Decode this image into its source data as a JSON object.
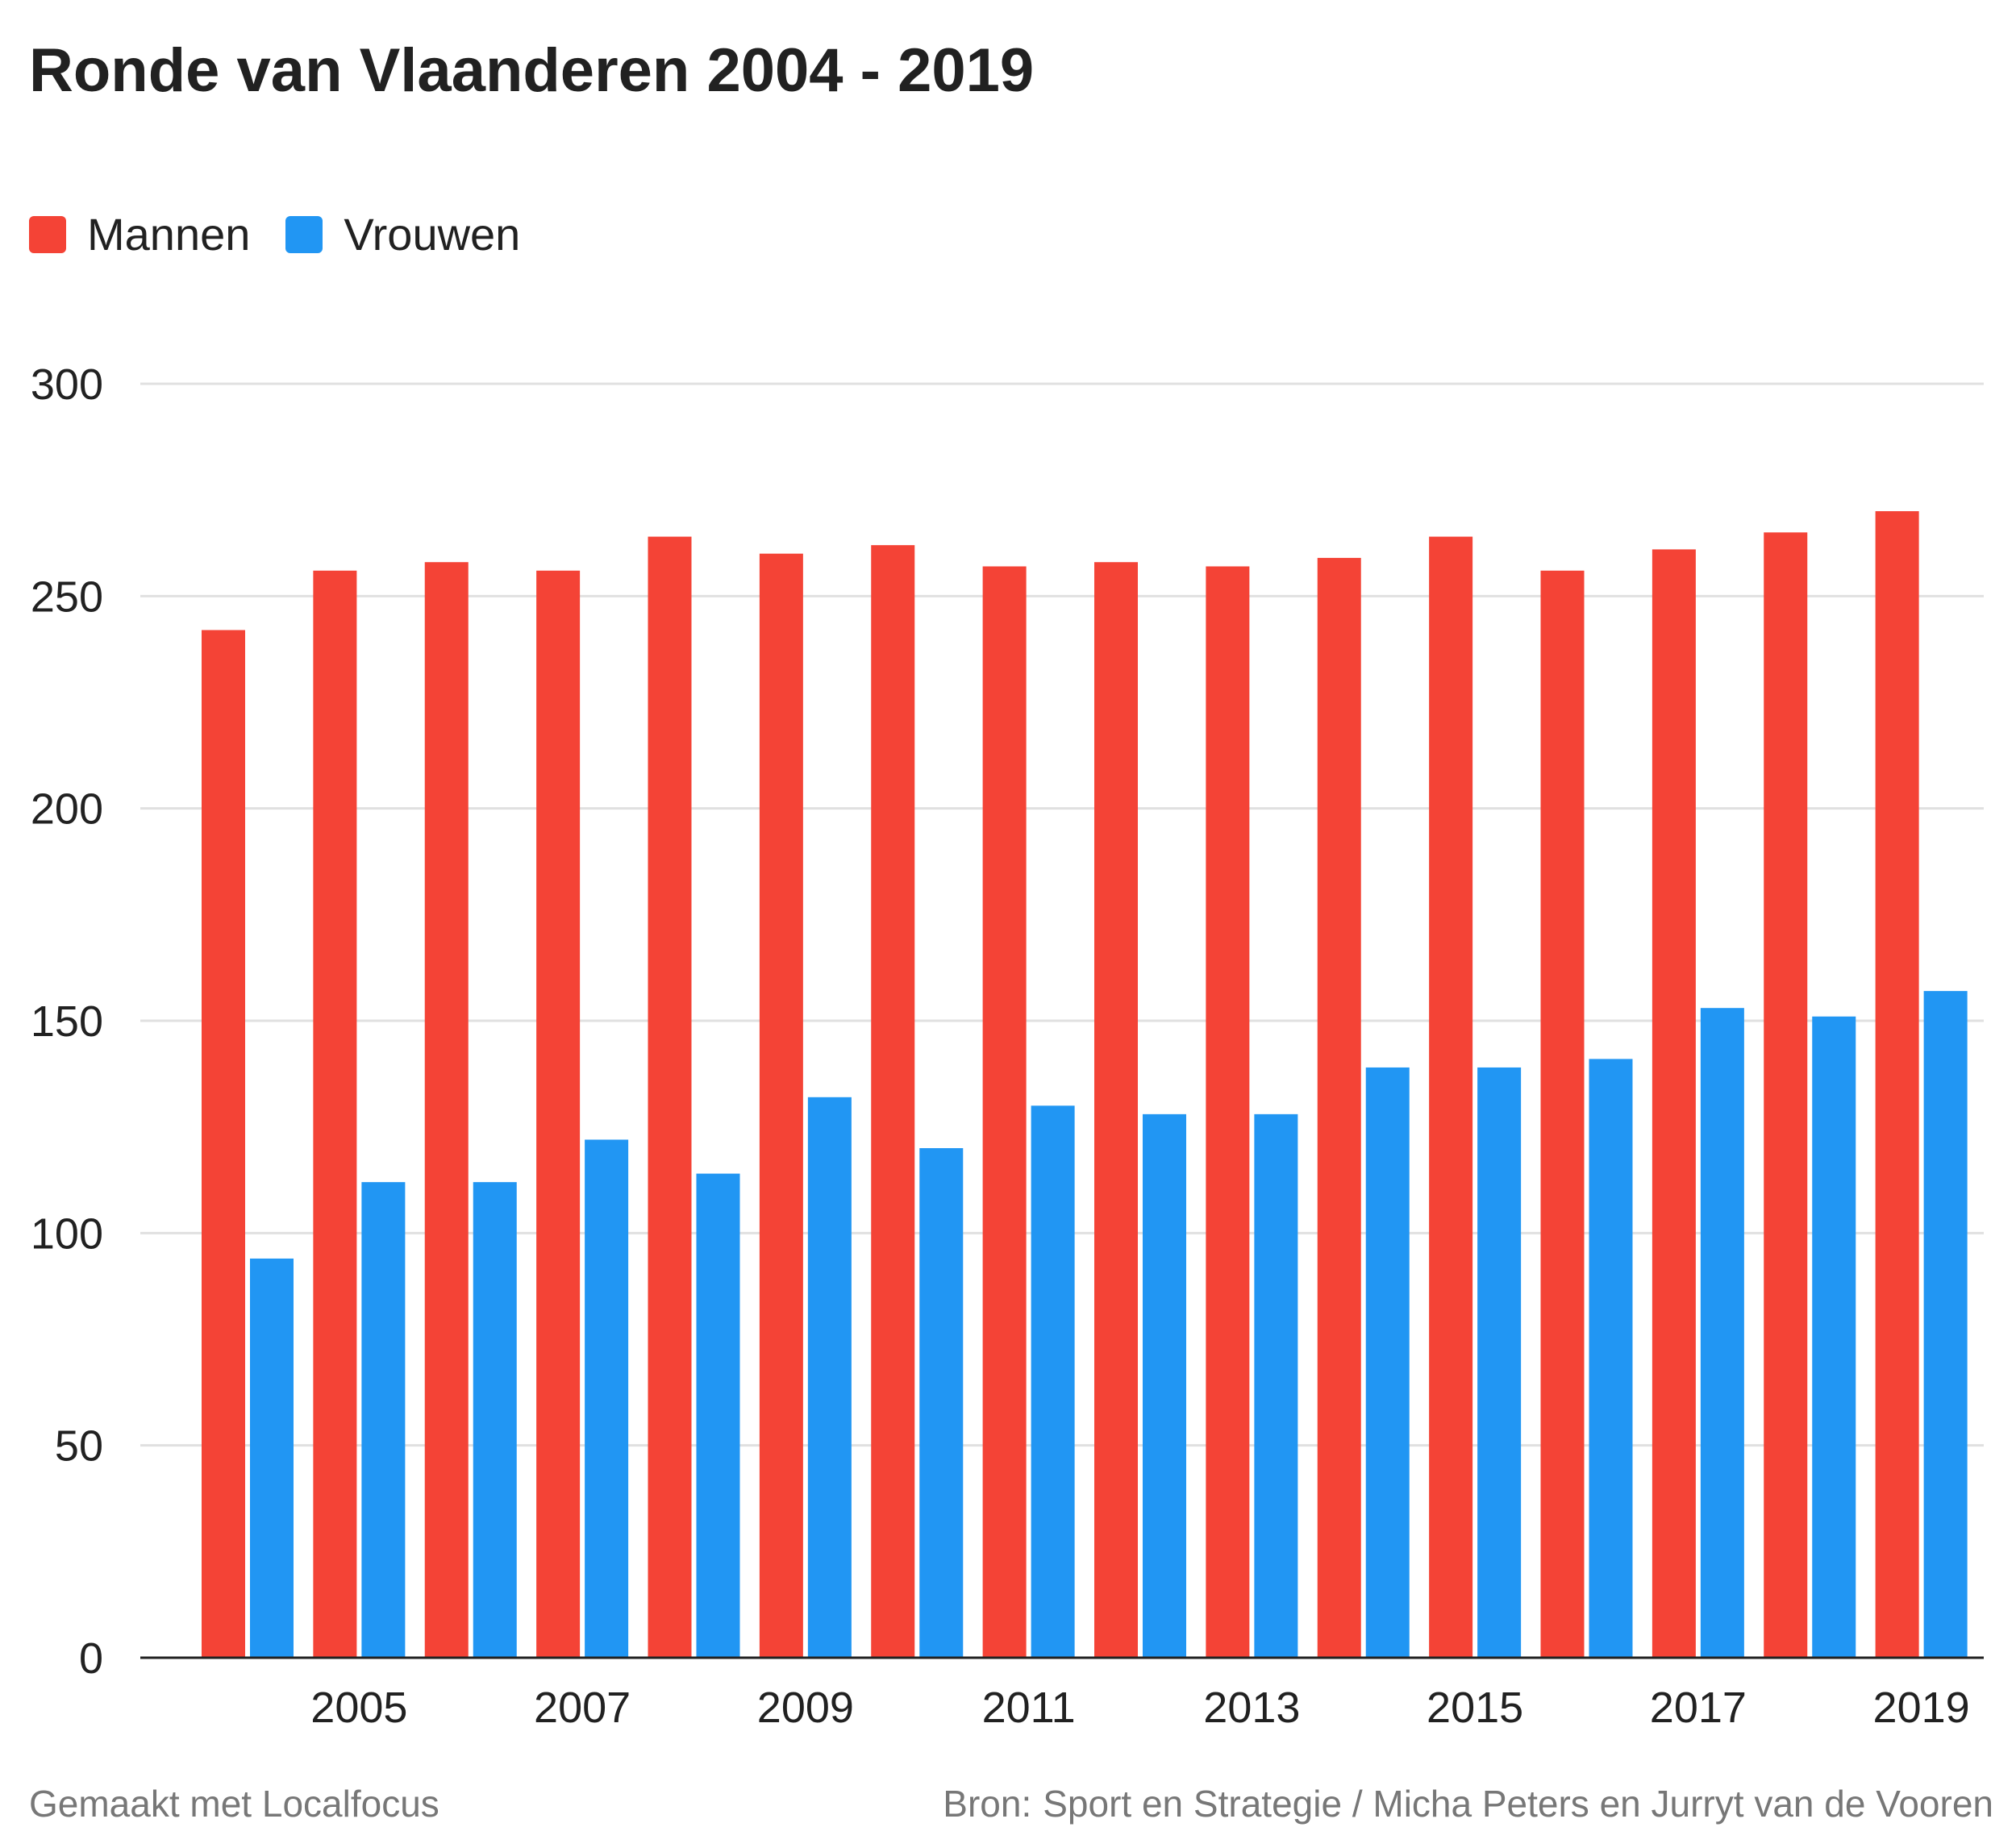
{
  "chart_data": {
    "type": "bar",
    "title": "Ronde van Vlaanderen 2004 - 2019",
    "xlabel": "",
    "ylabel": "",
    "ylim": [
      0,
      300
    ],
    "yticks": [
      0,
      50,
      100,
      150,
      200,
      250,
      300
    ],
    "grid": true,
    "legend_position": "top-left",
    "categories": [
      "2004",
      "2005",
      "2006",
      "2007",
      "2008",
      "2009",
      "2010",
      "2011",
      "2012",
      "2013",
      "2014",
      "2015",
      "2016",
      "2017",
      "2018",
      "2019"
    ],
    "xtick_labels": [
      "2005",
      "2007",
      "2009",
      "2011",
      "2013",
      "2015",
      "2017",
      "2019"
    ],
    "series": [
      {
        "name": "Mannen",
        "color": "#f44336",
        "values": [
          242,
          256,
          258,
          256,
          264,
          260,
          262,
          257,
          258,
          257,
          259,
          264,
          256,
          261,
          265,
          270
        ]
      },
      {
        "name": "Vrouwen",
        "color": "#2196f3",
        "values": [
          94,
          112,
          112,
          122,
          114,
          132,
          120,
          130,
          128,
          128,
          139,
          139,
          141,
          153,
          151,
          157
        ]
      }
    ]
  },
  "footer": {
    "made_with": "Gemaakt met Localfocus",
    "source_label": "Bron:",
    "source_text": "Sport en Strategie / Micha Peters en Jurryt van de Vooren"
  }
}
